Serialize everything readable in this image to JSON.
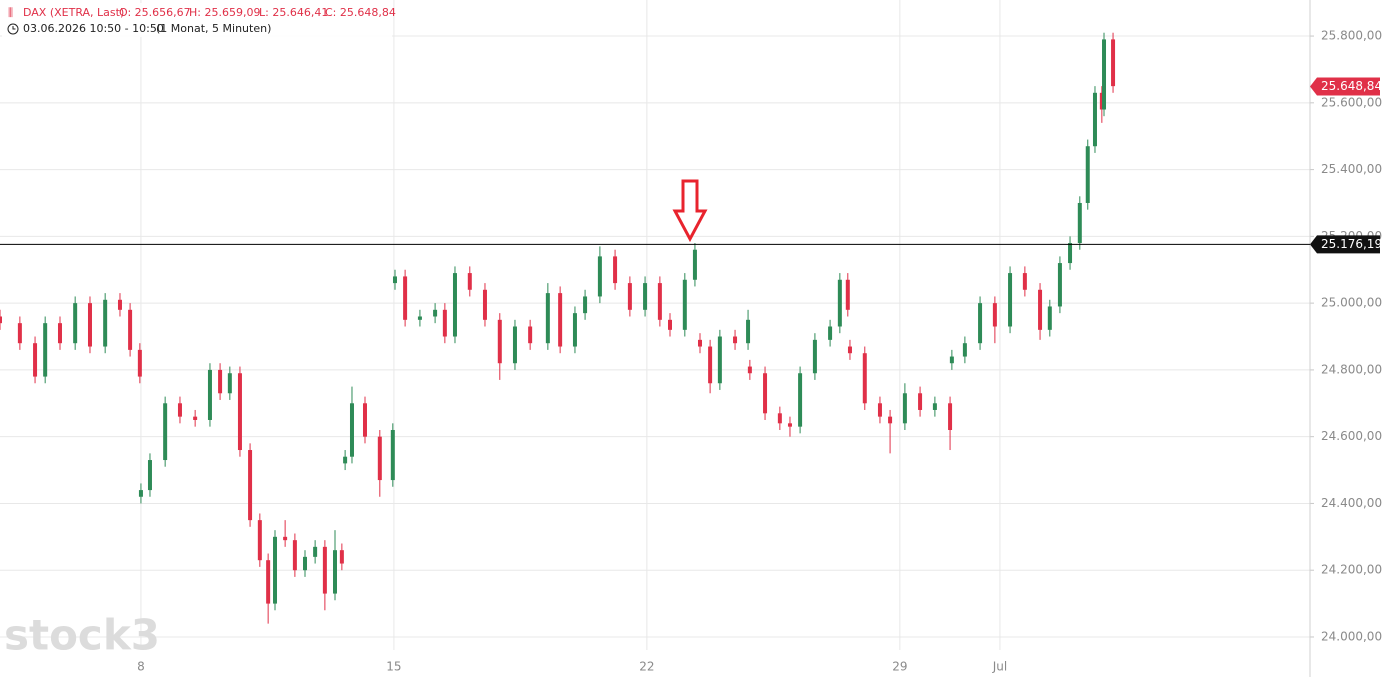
{
  "chart_data": {
    "type": "candlestick",
    "title": "DAX (XETRA, Last)",
    "ohlc_labels": [
      "O: 25.656,67",
      "H: 25.659,09",
      "L: 25.646,41",
      "C: 25.648,84"
    ],
    "subtitle": "03.06.2026 10:50 - 10:50",
    "interval": "(1 Monat, 5 Minuten)",
    "watermark": "stock3",
    "up_color": "#2e8b57",
    "down_color": "#e03048",
    "grid": true,
    "xlim": [
      4.1,
      40.35
    ],
    "xticks": [
      8,
      15,
      22,
      29,
      {
        "value": 31.77,
        "label": "Jul"
      }
    ],
    "ylim": [
      23961,
      25908
    ],
    "yticks": [
      {
        "value": 24000,
        "label": "24.000,00"
      },
      {
        "value": 24200,
        "label": "24.200,00"
      },
      {
        "value": 24400,
        "label": "24.400,00"
      },
      {
        "value": 24600,
        "label": "24.600,00"
      },
      {
        "value": 24800,
        "label": "24.800,00"
      },
      {
        "value": 25000,
        "label": "25.000,00"
      },
      {
        "value": 25200,
        "label": "25.200,00"
      },
      {
        "value": 25400,
        "label": "25.400,00"
      },
      {
        "value": 25600,
        "label": "25.600,00"
      },
      {
        "value": 25800,
        "label": "25.800,00"
      }
    ],
    "hline": {
      "value": 25176.19,
      "label": "25.176,19"
    },
    "last_price": {
      "value": 25648.84,
      "label": "25.648,84"
    },
    "x": [
      4.1,
      4.65,
      5.07,
      5.35,
      5.76,
      6.18,
      6.59,
      7.01,
      7.42,
      7.7,
      7.97,
      8.0,
      8.25,
      8.67,
      9.08,
      9.5,
      9.91,
      10.19,
      10.46,
      10.74,
      11.02,
      11.29,
      11.52,
      11.71,
      11.99,
      12.26,
      12.54,
      12.82,
      13.09,
      13.37,
      13.56,
      13.65,
      13.84,
      14.2,
      14.61,
      14.97,
      15.03,
      15.31,
      15.72,
      16.14,
      16.41,
      16.69,
      17.1,
      17.52,
      17.93,
      18.35,
      18.77,
      19.26,
      19.6,
      20.01,
      20.29,
      20.7,
      21.12,
      21.53,
      21.95,
      22.36,
      22.64,
      23.05,
      23.33,
      23.47,
      23.75,
      24.02,
      24.44,
      24.8,
      24.85,
      25.27,
      25.68,
      25.96,
      26.24,
      26.65,
      27.07,
      27.34,
      27.56,
      27.62,
      28.03,
      28.45,
      28.73,
      29.14,
      29.56,
      29.97,
      30.39,
      30.44,
      30.8,
      31.22,
      31.63,
      32.05,
      32.46,
      32.88,
      33.15,
      33.43,
      33.71,
      33.98,
      34.2,
      34.4,
      34.59,
      34.65,
      34.9
    ],
    "open": [
      24960,
      24940,
      24880,
      24780,
      24940,
      24880,
      25000,
      24870,
      25010,
      24980,
      24860,
      24420,
      24440,
      24530,
      24700,
      24660,
      24650,
      24800,
      24730,
      24790,
      24560,
      24350,
      24230,
      24100,
      24300,
      24290,
      24200,
      24240,
      24270,
      24130,
      24260,
      24520,
      24540,
      24700,
      24600,
      24470,
      25060,
      25080,
      24950,
      24960,
      24980,
      24900,
      25090,
      25040,
      24950,
      24820,
      24930,
      24880,
      25030,
      24870,
      24970,
      25020,
      25140,
      25060,
      24980,
      25060,
      24950,
      24920,
      25070,
      24890,
      24870,
      24760,
      24900,
      24880,
      24810,
      24790,
      24670,
      24640,
      24630,
      24790,
      24890,
      24930,
      25070,
      24870,
      24850,
      24700,
      24660,
      24640,
      24730,
      24680,
      24700,
      24820,
      24840,
      24880,
      25000,
      24930,
      25090,
      25040,
      24920,
      24990,
      25120,
      25180,
      25300,
      25470,
      25630,
      25580,
      25790
    ],
    "high": [
      24980,
      24960,
      24900,
      24960,
      24960,
      25020,
      25020,
      25030,
      25030,
      25000,
      24880,
      24460,
      24550,
      24720,
      24720,
      24680,
      24820,
      24820,
      24810,
      24810,
      24580,
      24370,
      24250,
      24320,
      24350,
      24310,
      24260,
      24290,
      24290,
      24320,
      24280,
      24560,
      24750,
      24720,
      24620,
      24640,
      25100,
      25100,
      24980,
      25000,
      25000,
      25110,
      25110,
      25060,
      24970,
      24950,
      24950,
      25060,
      25050,
      24990,
      25040,
      25170,
      25160,
      25080,
      25080,
      25080,
      24970,
      25090,
      25180,
      24910,
      24890,
      24920,
      24920,
      24980,
      24830,
      24810,
      24690,
      24660,
      24810,
      24910,
      24950,
      25090,
      25090,
      24890,
      24870,
      24720,
      24680,
      24760,
      24750,
      24720,
      24720,
      24860,
      24900,
      25020,
      25020,
      25110,
      25110,
      25060,
      25010,
      25140,
      25200,
      25320,
      25490,
      25650,
      25650,
      25810,
      25810
    ],
    "low": [
      24920,
      24860,
      24760,
      24760,
      24860,
      24860,
      24850,
      24850,
      24960,
      24840,
      24760,
      24400,
      24420,
      24510,
      24640,
      24630,
      24630,
      24710,
      24710,
      24540,
      24330,
      24210,
      24040,
      24080,
      24270,
      24180,
      24180,
      24220,
      24080,
      24110,
      24200,
      24500,
      24520,
      24580,
      24420,
      24450,
      25040,
      24930,
      24930,
      24940,
      24880,
      24880,
      25020,
      24930,
      24770,
      24800,
      24860,
      24860,
      24850,
      24850,
      24950,
      25000,
      25040,
      24960,
      24960,
      24930,
      24900,
      24900,
      25050,
      24850,
      24730,
      24740,
      24860,
      24860,
      24770,
      24650,
      24620,
      24600,
      24610,
      24770,
      24870,
      24910,
      24960,
      24830,
      24680,
      24640,
      24550,
      24620,
      24660,
      24660,
      24560,
      24800,
      24820,
      24860,
      24880,
      24910,
      25020,
      24890,
      24900,
      24970,
      25100,
      25160,
      25280,
      25450,
      25540,
      25560,
      25630
    ],
    "close": [
      24940,
      24880,
      24780,
      24940,
      24880,
      25000,
      24870,
      25010,
      24980,
      24860,
      24780,
      24440,
      24530,
      24700,
      24660,
      24650,
      24800,
      24730,
      24790,
      24560,
      24350,
      24230,
      24100,
      24300,
      24290,
      24200,
      24240,
      24270,
      24130,
      24260,
      24220,
      24540,
      24700,
      24600,
      24470,
      24620,
      25080,
      24950,
      24960,
      24980,
      24900,
      25090,
      25040,
      24950,
      24820,
      24930,
      24880,
      25030,
      24870,
      24970,
      25020,
      25140,
      25060,
      24980,
      25060,
      24950,
      24920,
      25070,
      25160,
      24870,
      24760,
      24900,
      24880,
      24950,
      24790,
      24670,
      24640,
      24630,
      24790,
      24890,
      24930,
      25070,
      24980,
      24850,
      24700,
      24660,
      24640,
      24730,
      24680,
      24700,
      24620,
      24840,
      24880,
      25000,
      24930,
      25090,
      25040,
      24920,
      24990,
      25120,
      25180,
      25300,
      25470,
      25630,
      25580,
      25790,
      25650
    ]
  }
}
